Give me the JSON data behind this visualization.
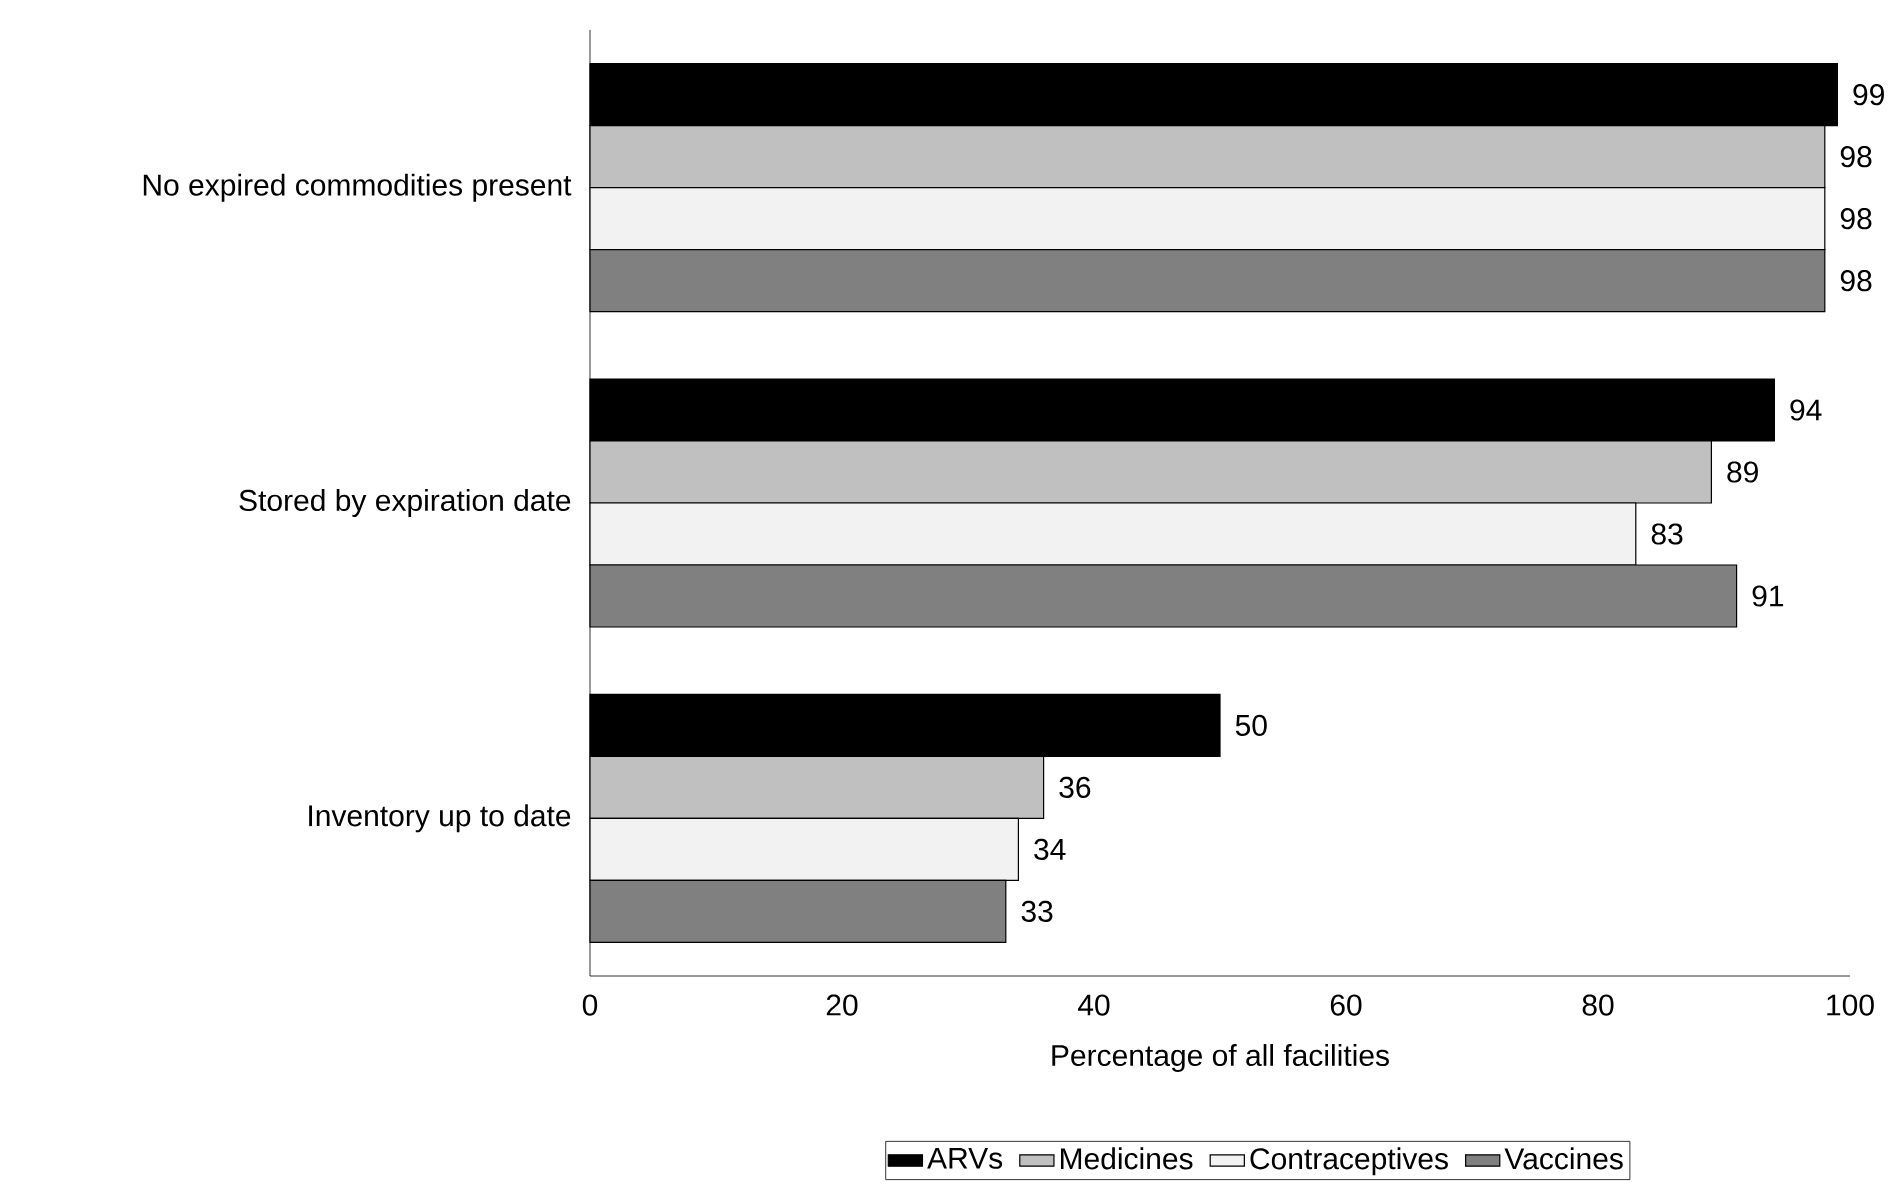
{
  "chart_data": {
    "type": "bar",
    "orientation": "horizontal",
    "xlabel": "Percentage of all facilities",
    "categories": [
      "No expired commodities present",
      "Stored by expiration date",
      "Inventory up to date"
    ],
    "series": [
      {
        "name": "ARVs",
        "color": "#000000",
        "values": [
          99,
          94,
          50
        ]
      },
      {
        "name": "Medicines",
        "color": "#c0c0c0",
        "values": [
          98,
          89,
          36
        ]
      },
      {
        "name": "Contraceptives",
        "color": "#f2f2f2",
        "values": [
          98,
          83,
          34
        ]
      },
      {
        "name": "Vaccines",
        "color": "#808080",
        "values": [
          98,
          91,
          33
        ]
      }
    ],
    "xlim": [
      0,
      100
    ],
    "xticks": [
      0,
      20,
      40,
      60,
      80,
      100
    ],
    "data_labels": true,
    "legend": "bottom",
    "grid": false
  }
}
